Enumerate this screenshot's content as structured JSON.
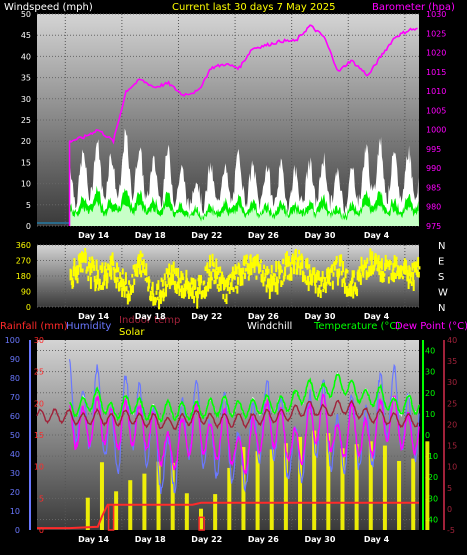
{
  "header": {
    "left_title": "Windspeed (mph)",
    "center_title": "Current last 30 days 7 May 2025",
    "right_title": "Barometer (hpa)"
  },
  "colors": {
    "background": "#000000",
    "panel_top": "#d0d0d0",
    "panel_bottom": "#3a3a3a",
    "wind_gust": "#ffffff",
    "wind_avg": "#00ee00",
    "wind_light": "#c8ffc8",
    "barometer": "#ff00ff",
    "direction": "#ffff00",
    "rainfall": "#ff2a2a",
    "humidity": "#6a78ff",
    "indoor_temp": "#a0223a",
    "solar": "#ffff00",
    "windchill": "#ffffff",
    "temperature": "#00ff00",
    "dew_point": "#ff00ff"
  },
  "chart_data": [
    {
      "type": "area",
      "panel": "wind",
      "ylabel_left": "Windspeed (mph)",
      "ylabel_right": "Barometer (hpa)",
      "ylim_left": [
        0,
        50
      ],
      "yticks_left": [
        "0",
        "5",
        "10",
        "15",
        "20",
        "25",
        "30",
        "35",
        "40",
        "45",
        "50"
      ],
      "ylim_right": [
        975,
        1030
      ],
      "yticks_right": [
        "975",
        "980",
        "985",
        "990",
        "995",
        "1000",
        "1005",
        "1010",
        "1015",
        "1020",
        "1025",
        "1030"
      ],
      "x_labels": [
        "Day 14",
        "Day 18",
        "Day 22",
        "Day 26",
        "Day 30",
        "Day 4"
      ],
      "x_range_days": [
        10,
        37
      ],
      "data_start_day": 12.3,
      "series": [
        {
          "name": "Barometer",
          "x": [
            12.3,
            13.3,
            14.3,
            15.4,
            16.3,
            17.3,
            18.3,
            19.3,
            20.3,
            21.4,
            22.3,
            23.3,
            24.3,
            25.2,
            26.3,
            27.3,
            28.3,
            29.3,
            30.3,
            31.3,
            32.2,
            33.4,
            34.3,
            35.3,
            36.4,
            37.0
          ],
          "y": [
            997,
            998,
            1000,
            997,
            1010,
            1013,
            1011,
            1012,
            1009,
            1010,
            1016,
            1017,
            1016,
            1021,
            1022,
            1023,
            1023,
            1027,
            1024,
            1015,
            1018,
            1014,
            1019,
            1024,
            1026,
            1026
          ]
        },
        {
          "name": "Wind gust",
          "x": [
            12.3,
            13.3,
            14.3,
            15.4,
            16.3,
            17.3,
            18.3,
            19.3,
            20.3,
            21.4,
            22.3,
            23.3,
            24.3,
            25.2,
            26.3,
            27.3,
            28.3,
            29.3,
            30.3,
            31.3,
            32.2,
            33.4,
            34.3,
            35.3,
            36.4,
            37.0
          ],
          "y": [
            15,
            17,
            20,
            16,
            22,
            18,
            15,
            18,
            13,
            11,
            14,
            14,
            17,
            14,
            14,
            14,
            13,
            15,
            16,
            12,
            13,
            19,
            20,
            16,
            18,
            19
          ]
        },
        {
          "name": "Wind average",
          "x": [
            12.3,
            13.3,
            14.3,
            15.4,
            16.3,
            17.3,
            18.3,
            19.3,
            20.3,
            21.4,
            22.3,
            23.3,
            24.3,
            25.2,
            26.3,
            27.3,
            28.3,
            29.3,
            30.3,
            31.3,
            32.2,
            33.4,
            34.3,
            35.3,
            36.4,
            37.0
          ],
          "y": [
            5,
            7,
            9,
            6,
            9,
            8,
            6,
            8,
            5,
            4,
            5,
            6,
            7,
            6,
            5,
            6,
            5,
            6,
            7,
            4,
            5,
            8,
            8,
            6,
            7,
            8
          ]
        }
      ]
    },
    {
      "type": "scatter",
      "panel": "direction",
      "ylim": [
        0,
        360
      ],
      "yticks": [
        "0",
        "90",
        "180",
        "270",
        "360"
      ],
      "compass_labels": [
        "N",
        "W",
        "S",
        "E",
        "N"
      ],
      "x_labels": [
        "Day 14",
        "Day 18",
        "Day 22",
        "Day 26",
        "Day 30",
        "Day 4"
      ],
      "series": [
        {
          "name": "Wind direction",
          "x": [
            12.3,
            13.3,
            14.3,
            15.4,
            16.3,
            17.3,
            18.3,
            19.3,
            20.3,
            21.4,
            22.3,
            23.3,
            24.3,
            25.2,
            26.3,
            27.3,
            28.3,
            29.3,
            30.3,
            31.3,
            32.2,
            33.4,
            34.3,
            35.3,
            36.4,
            37.0
          ],
          "y": [
            190,
            250,
            160,
            230,
            90,
            260,
            40,
            200,
            120,
            90,
            220,
            100,
            180,
            260,
            140,
            200,
            270,
            160,
            130,
            230,
            110,
            260,
            200,
            240,
            180,
            200
          ]
        }
      ]
    },
    {
      "type": "line",
      "panel": "temperature",
      "legend": [
        "Rainfall (mm)",
        "Humidity",
        "Indoor temp",
        "Solar",
        "Windchill",
        "Temperature (°C)",
        "Dew Point (°C)"
      ],
      "axes": {
        "humidity": {
          "ylim": [
            0,
            100
          ],
          "ticks": [
            "0",
            "10",
            "20",
            "30",
            "40",
            "50",
            "60",
            "70",
            "80",
            "90",
            "100"
          ]
        },
        "rainfall": {
          "ylim": [
            0,
            30
          ],
          "ticks": [
            "0",
            "5",
            "10",
            "15",
            "20",
            "25",
            "30"
          ]
        },
        "temperature": {
          "ylim": [
            -45,
            45
          ],
          "ticks": [
            "-40",
            "-30",
            "-20",
            "-10",
            "0",
            "10",
            "20",
            "30",
            "40"
          ]
        },
        "indoor_temp": {
          "ylim": [
            -5,
            40
          ],
          "ticks": [
            "-5",
            "0",
            "5",
            "10",
            "15",
            "20",
            "25",
            "30",
            "35",
            "40"
          ]
        }
      },
      "x_labels": [
        "Day 14",
        "Day 18",
        "Day 22",
        "Day 26",
        "Day 30",
        "Day 4"
      ],
      "series": [
        {
          "name": "Temperature (°C)",
          "x": [
            12.3,
            13.3,
            14.3,
            15.4,
            16.3,
            17.3,
            18.3,
            19.3,
            20.3,
            21.4,
            22.3,
            23.3,
            24.3,
            25.2,
            26.3,
            27.3,
            28.3,
            29.3,
            30.3,
            31.3,
            32.2,
            33.4,
            34.3,
            35.3,
            36.4,
            37.0
          ],
          "y": [
            12,
            14,
            18,
            10,
            15,
            13,
            10,
            12,
            11,
            12,
            13,
            14,
            12,
            13,
            15,
            14,
            17,
            22,
            20,
            25,
            22,
            17,
            19,
            13,
            15,
            14
          ]
        },
        {
          "name": "Dew Point (°C)",
          "x": [
            12.3,
            13.3,
            14.3,
            15.4,
            16.3,
            17.3,
            18.3,
            19.3,
            20.3,
            21.4,
            22.3,
            23.3,
            24.3,
            25.2,
            26.3,
            27.3,
            28.3,
            29.3,
            30.3,
            31.3,
            32.2,
            33.4,
            34.3,
            35.3,
            36.4,
            37.0
          ],
          "y": [
            5,
            3,
            8,
            2,
            6,
            4,
            1,
            -10,
            -2,
            5,
            -5,
            3,
            -12,
            -3,
            6,
            2,
            -8,
            4,
            9,
            -6,
            5,
            -4,
            7,
            8,
            -2,
            5
          ]
        },
        {
          "name": "Humidity",
          "x": [
            12.3,
            13.3,
            14.3,
            15.4,
            16.3,
            17.3,
            18.3,
            19.3,
            20.3,
            21.4,
            22.3,
            23.3,
            24.3,
            25.2,
            26.3,
            27.3,
            28.3,
            29.3,
            30.3,
            31.3,
            32.2,
            33.4,
            34.3,
            35.3,
            36.4,
            37.0
          ],
          "y": [
            72,
            55,
            68,
            40,
            65,
            58,
            45,
            30,
            52,
            62,
            38,
            55,
            32,
            48,
            62,
            50,
            35,
            55,
            60,
            40,
            55,
            45,
            65,
            68,
            50,
            60
          ]
        },
        {
          "name": "Indoor temp",
          "x": [
            12.3,
            13.3,
            14.3,
            15.4,
            16.3,
            17.3,
            18.3,
            19.3,
            20.3,
            21.4,
            22.3,
            23.3,
            24.3,
            25.2,
            26.3,
            27.3,
            28.3,
            29.3,
            30.3,
            31.3,
            32.2,
            33.4,
            34.3,
            35.3,
            36.4,
            37.0
          ],
          "y": [
            22,
            21,
            22,
            21,
            22,
            21,
            21,
            20,
            21,
            22,
            21,
            21,
            21,
            21,
            22,
            22,
            23,
            24,
            23,
            24,
            24,
            22,
            22,
            21,
            21,
            21
          ]
        },
        {
          "name": "Rainfall (mm)",
          "x": [
            10.0,
            12.3,
            14.3,
            14.6,
            15.0,
            15.8,
            16.3,
            18.0,
            20.0,
            21.0,
            21.6,
            23.0,
            27.0,
            31.0,
            35.0,
            37.0
          ],
          "y": [
            0.3,
            0.3,
            0.5,
            2.2,
            4.0,
            4.0,
            4.0,
            4.0,
            4.0,
            4.0,
            4.3,
            4.3,
            4.3,
            4.3,
            4.3,
            4.3
          ]
        },
        {
          "name": "Solar",
          "x": [
            12.3,
            13.3,
            14.3,
            15.4,
            16.3,
            17.3,
            18.3,
            19.3,
            20.3,
            21.4,
            22.3,
            23.3,
            24.3,
            25.2,
            26.3,
            27.3,
            28.3,
            29.3,
            30.3,
            31.3,
            32.2,
            33.4,
            34.3,
            35.3,
            36.4,
            37.0
          ],
          "y": [
            500,
            150,
            700,
            80,
            550,
            400,
            600,
            500,
            200,
            150,
            350,
            550,
            700,
            600,
            650,
            700,
            750,
            800,
            750,
            600,
            700,
            700,
            650,
            500,
            600,
            700
          ]
        }
      ]
    }
  ]
}
